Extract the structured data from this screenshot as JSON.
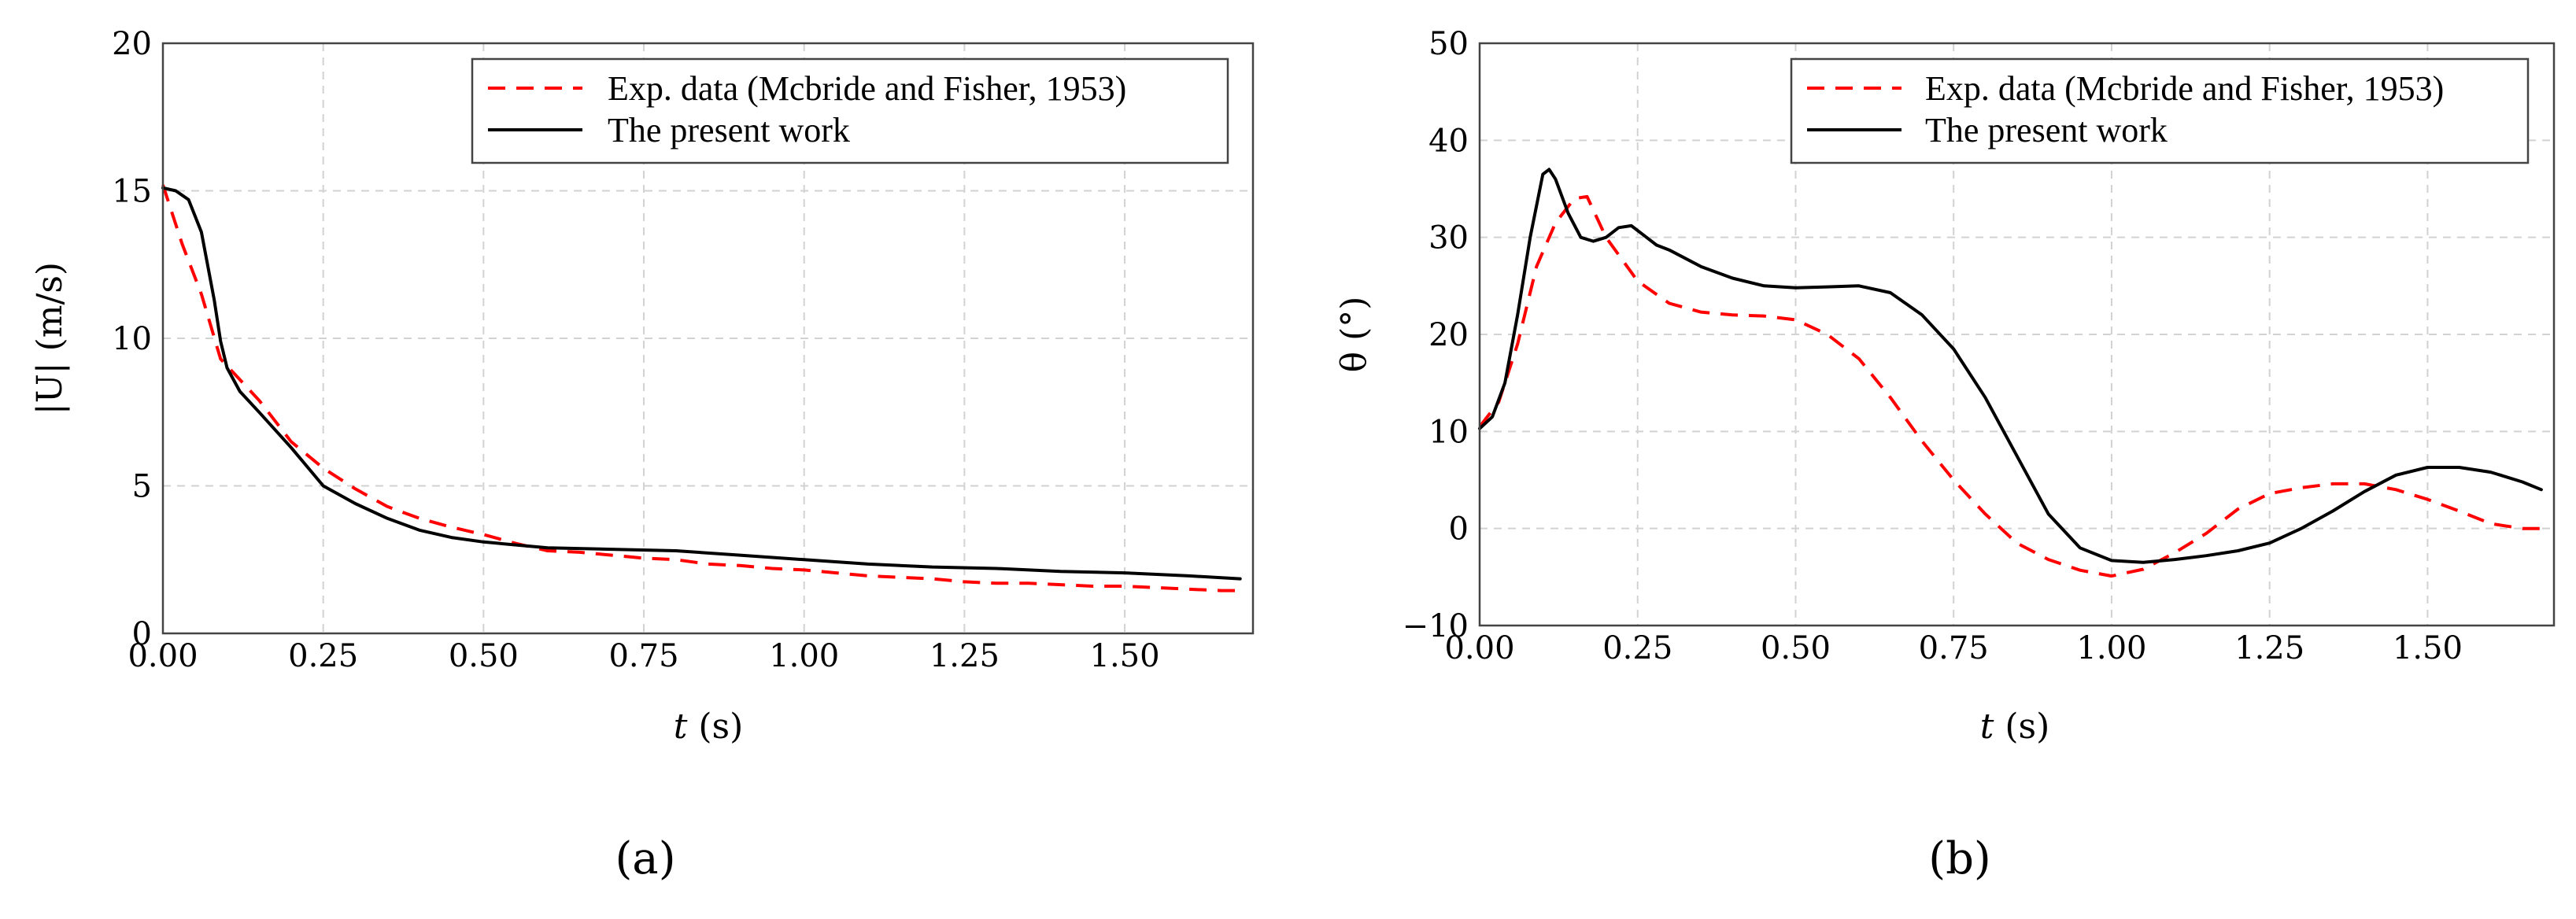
{
  "chart_data": [
    {
      "type": "line",
      "caption": "(a)",
      "xlabel": "t (s)",
      "ylabel": "|U| (m/s)",
      "xlim": [
        0,
        1.7
      ],
      "ylim": [
        0,
        20
      ],
      "xticks": [
        "0.00",
        "0.25",
        "0.50",
        "0.75",
        "1.00",
        "1.25",
        "1.50"
      ],
      "yticks": [
        "0",
        "5",
        "10",
        "15",
        "20"
      ],
      "grid": true,
      "legend_position": "top-right",
      "series": [
        {
          "name": "Exp. data (Mcbride and Fisher, 1953)",
          "color": "#ff0000",
          "dash": true,
          "x": [
            0.0,
            0.03,
            0.06,
            0.09,
            0.12,
            0.15,
            0.2,
            0.25,
            0.3,
            0.35,
            0.4,
            0.45,
            0.5,
            0.55,
            0.6,
            0.65,
            0.7,
            0.75,
            0.8,
            0.85,
            0.9,
            0.95,
            1.0,
            1.05,
            1.1,
            1.15,
            1.2,
            1.25,
            1.3,
            1.35,
            1.4,
            1.45,
            1.5,
            1.55,
            1.6,
            1.65,
            1.68
          ],
          "y": [
            15.2,
            13.2,
            11.5,
            9.3,
            8.6,
            7.9,
            6.5,
            5.6,
            4.9,
            4.3,
            3.9,
            3.6,
            3.35,
            3.05,
            2.8,
            2.75,
            2.65,
            2.55,
            2.5,
            2.35,
            2.3,
            2.2,
            2.15,
            2.05,
            1.95,
            1.9,
            1.85,
            1.75,
            1.7,
            1.7,
            1.65,
            1.6,
            1.6,
            1.55,
            1.5,
            1.45,
            1.45
          ]
        },
        {
          "name": "The present work",
          "color": "#000000",
          "dash": false,
          "x": [
            0.0,
            0.02,
            0.04,
            0.06,
            0.08,
            0.09,
            0.1,
            0.12,
            0.15,
            0.2,
            0.25,
            0.3,
            0.35,
            0.4,
            0.45,
            0.5,
            0.6,
            0.7,
            0.8,
            0.9,
            1.0,
            1.1,
            1.2,
            1.3,
            1.4,
            1.5,
            1.6,
            1.68
          ],
          "y": [
            15.1,
            15.0,
            14.7,
            13.6,
            11.3,
            9.9,
            9.0,
            8.2,
            7.5,
            6.3,
            5.0,
            4.4,
            3.9,
            3.5,
            3.25,
            3.1,
            2.9,
            2.85,
            2.8,
            2.65,
            2.5,
            2.35,
            2.25,
            2.2,
            2.1,
            2.05,
            1.95,
            1.85
          ]
        }
      ]
    },
    {
      "type": "line",
      "caption": "(b)",
      "xlabel": "t (s)",
      "ylabel": "θ (°)",
      "xlim": [
        0,
        1.7
      ],
      "ylim": [
        -10,
        50
      ],
      "xticks": [
        "0.00",
        "0.25",
        "0.50",
        "0.75",
        "1.00",
        "1.25",
        "1.50"
      ],
      "yticks": [
        "−10",
        "0",
        "10",
        "20",
        "30",
        "40",
        "50"
      ],
      "grid": true,
      "legend_position": "top-right",
      "series": [
        {
          "name": "Exp. data (Mcbride and Fisher, 1953)",
          "color": "#ff0000",
          "dash": true,
          "x": [
            0.0,
            0.03,
            0.06,
            0.09,
            0.12,
            0.15,
            0.17,
            0.2,
            0.25,
            0.3,
            0.35,
            0.4,
            0.45,
            0.5,
            0.55,
            0.6,
            0.65,
            0.7,
            0.75,
            0.8,
            0.85,
            0.9,
            0.95,
            1.0,
            1.05,
            1.1,
            1.15,
            1.2,
            1.25,
            1.3,
            1.35,
            1.4,
            1.45,
            1.5,
            1.55,
            1.6,
            1.65,
            1.68
          ],
          "y": [
            10.5,
            13.0,
            19.0,
            27.0,
            31.5,
            34.0,
            34.2,
            30.0,
            25.5,
            23.2,
            22.3,
            22.0,
            21.9,
            21.5,
            20.0,
            17.5,
            13.5,
            9.0,
            5.0,
            1.5,
            -1.5,
            -3.2,
            -4.3,
            -4.9,
            -4.2,
            -2.5,
            -0.5,
            2.0,
            3.6,
            4.2,
            4.6,
            4.6,
            4.0,
            3.0,
            1.8,
            0.5,
            0.0,
            0.0
          ]
        },
        {
          "name": "The present work",
          "color": "#000000",
          "dash": false,
          "x": [
            0.0,
            0.02,
            0.04,
            0.06,
            0.08,
            0.1,
            0.11,
            0.12,
            0.14,
            0.16,
            0.18,
            0.2,
            0.22,
            0.24,
            0.26,
            0.28,
            0.3,
            0.35,
            0.4,
            0.45,
            0.5,
            0.55,
            0.6,
            0.65,
            0.7,
            0.75,
            0.8,
            0.85,
            0.9,
            0.95,
            1.0,
            1.05,
            1.1,
            1.15,
            1.2,
            1.25,
            1.3,
            1.35,
            1.4,
            1.45,
            1.5,
            1.55,
            1.6,
            1.65,
            1.68
          ],
          "y": [
            10.3,
            11.5,
            15.0,
            22.0,
            30.0,
            36.5,
            37.0,
            36.0,
            32.5,
            30.0,
            29.6,
            30.0,
            31.0,
            31.2,
            30.2,
            29.2,
            28.7,
            27.0,
            25.8,
            25.0,
            24.8,
            24.9,
            25.0,
            24.3,
            22.0,
            18.5,
            13.5,
            7.5,
            1.5,
            -2.0,
            -3.3,
            -3.5,
            -3.2,
            -2.8,
            -2.3,
            -1.5,
            0.0,
            1.8,
            3.8,
            5.5,
            6.3,
            6.3,
            5.8,
            4.8,
            4.0
          ]
        }
      ]
    }
  ]
}
